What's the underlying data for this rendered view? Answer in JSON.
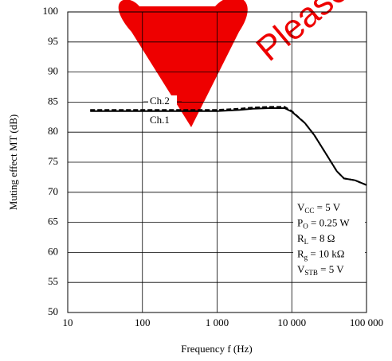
{
  "chart_data": {
    "type": "line",
    "x_label": "Frequency  f  (Hz)",
    "y_label": "Muting effect  MT  (dB)",
    "x": [
      20,
      50,
      100,
      200,
      500,
      1000,
      2000,
      3000,
      5000,
      8000,
      10000,
      15000,
      20000,
      30000,
      40000,
      50000,
      70000,
      100000
    ],
    "series": [
      {
        "name": "Ch.2",
        "color": "#000000",
        "dash": true,
        "values": [
          83.7,
          83.7,
          83.7,
          83.7,
          83.7,
          83.7,
          83.9,
          84.1,
          84.2,
          84.2,
          83.5,
          81.5,
          79.5,
          76,
          73.5,
          72.3,
          72,
          71.2
        ]
      },
      {
        "name": "Ch.1",
        "color": "#000000",
        "dash": false,
        "values": [
          83.5,
          83.5,
          83.5,
          83.5,
          83.5,
          83.5,
          83.7,
          83.9,
          84,
          84,
          83.4,
          81.5,
          79.5,
          76,
          73.5,
          72.3,
          72,
          71.2
        ]
      }
    ],
    "xlim": [
      10,
      100000
    ],
    "log_x": true,
    "xticks": [
      10,
      100,
      {
        "value": 1000,
        "label": "1 000"
      },
      {
        "value": 10000,
        "label": "10 000"
      },
      {
        "value": 100000,
        "label": "100 000"
      }
    ],
    "ylim": [
      50,
      100
    ],
    "yticks": [
      50,
      55,
      60,
      65,
      70,
      75,
      80,
      85,
      90,
      95,
      100
    ],
    "grid": true,
    "conditions": [
      {
        "symbol": "V",
        "sub": "CC",
        "rest": " = 5 V"
      },
      {
        "symbol": "P",
        "sub": "O",
        "rest": " = 0.25 W"
      },
      {
        "symbol": "R",
        "sub": "L",
        "rest": " = 8 Ω"
      },
      {
        "symbol": "R",
        "sub": "g",
        "rest": " = 10 kΩ"
      },
      {
        "symbol": "V",
        "sub": "STB",
        "rest": " = 5 V"
      }
    ],
    "watermark": "Please v"
  }
}
